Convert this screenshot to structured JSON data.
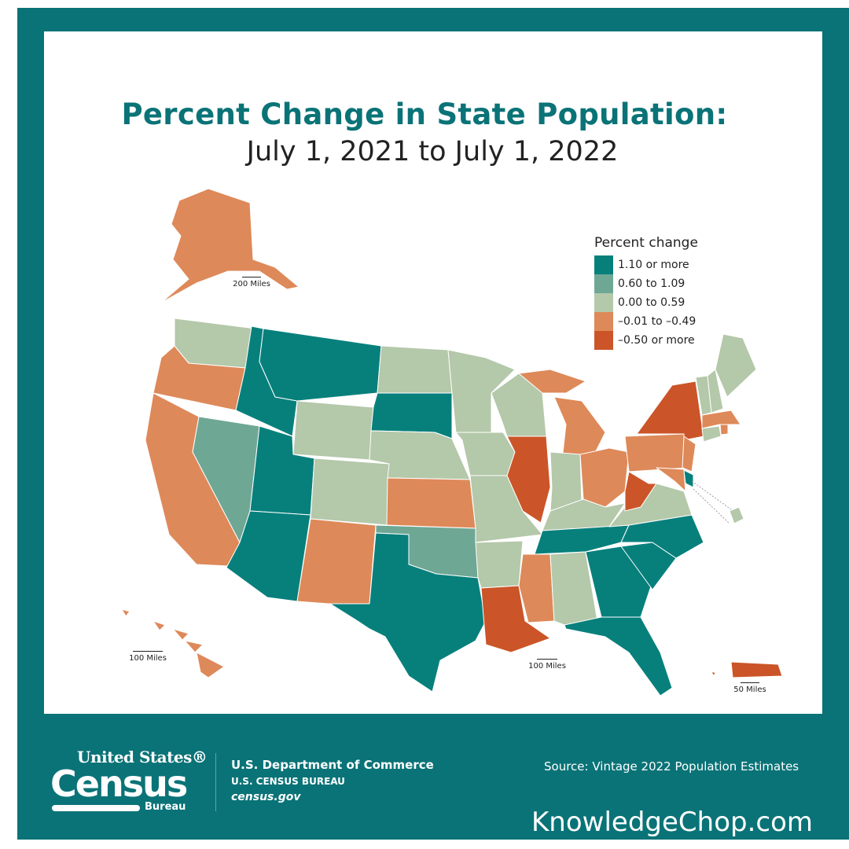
{
  "title": {
    "line1": "Percent Change in State Population:",
    "line2": "July 1, 2021 to July 1, 2022"
  },
  "legend": {
    "title": "Percent change",
    "items": [
      {
        "label": "1.10 or more",
        "color": "#07807c"
      },
      {
        "label": "0.60 to 1.09",
        "color": "#6fa795"
      },
      {
        "label": "0.00 to 0.59",
        "color": "#b4c8aa"
      },
      {
        "label": "–0.01 to –0.49",
        "color": "#de8959"
      },
      {
        "label": "–0.50 or more",
        "color": "#cb5528"
      }
    ]
  },
  "state_categories": {
    "WA": 2,
    "OR": 3,
    "CA": 3,
    "NV": 1,
    "ID": 0,
    "MT": 0,
    "WY": 2,
    "UT": 0,
    "AZ": 0,
    "CO": 2,
    "NM": 3,
    "ND": 2,
    "SD": 0,
    "NE": 2,
    "KS": 3,
    "OK": 1,
    "TX": 0,
    "MN": 2,
    "IA": 2,
    "MO": 2,
    "AR": 2,
    "LA": 4,
    "WI": 2,
    "IL": 4,
    "MI": 3,
    "MIU": 3,
    "IN": 2,
    "OH": 3,
    "KY": 2,
    "TN": 0,
    "MS": 3,
    "AL": 2,
    "GA": 0,
    "FL": 0,
    "SC": 0,
    "NC": 0,
    "VA": 2,
    "WV": 4,
    "PA": 3,
    "NY": 4,
    "NJ": 3,
    "DE": 0,
    "MD": 3,
    "CT": 2,
    "RI": 3,
    "MA": 3,
    "VT": 2,
    "NH": 2,
    "ME": 2,
    "AK": 3,
    "HI": 3,
    "PR": 4,
    "DC": 2
  },
  "scales": {
    "alaska": "200 Miles",
    "hawaii": "100 Miles",
    "contiguous": "100 Miles",
    "puerto_rico": "50 Miles"
  },
  "footer": {
    "logo_top": "United States®",
    "logo_main": "Census",
    "logo_sub": "Bureau",
    "dept": "U.S. Department of Commerce",
    "bureau": "U.S. CENSUS BUREAU",
    "site": "census.gov",
    "source": "Source: Vintage 2022 Population Estimates"
  },
  "watermark": "KnowledgeChop.com"
}
